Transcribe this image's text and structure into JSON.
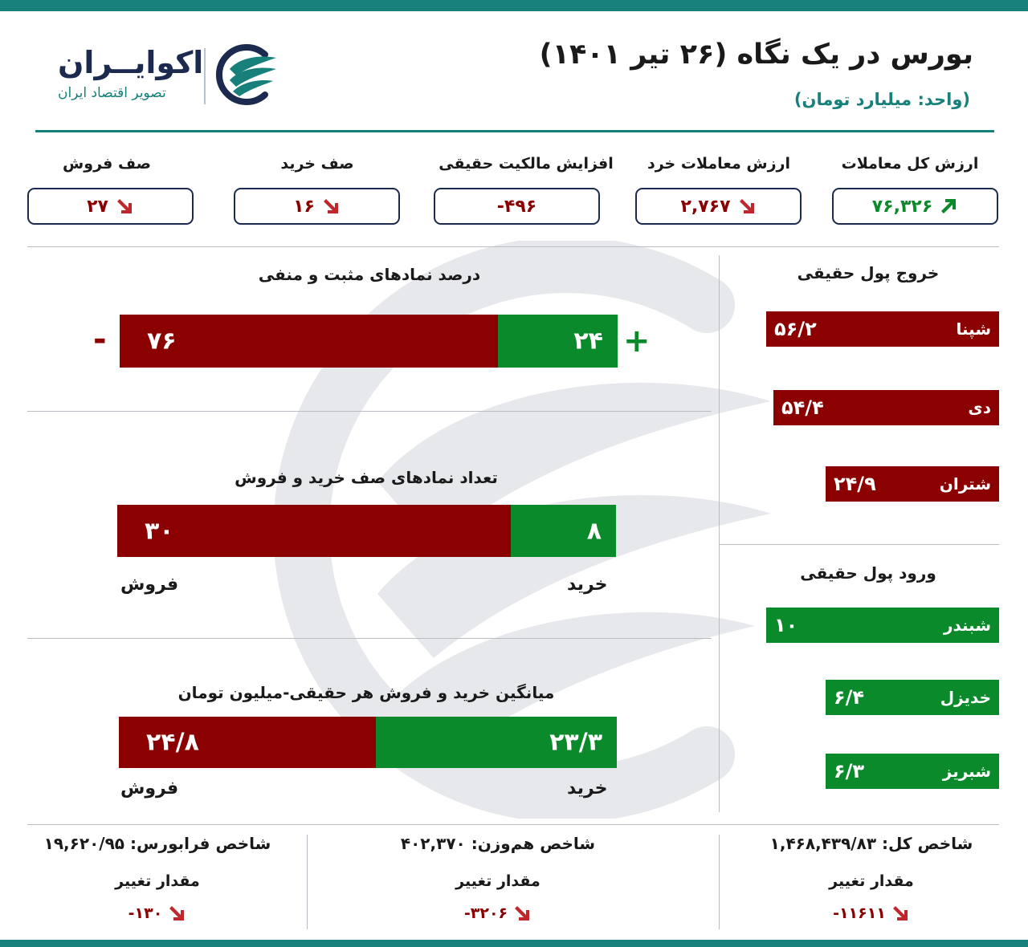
{
  "header": {
    "title": "بورس در یک نگاه (۲۶ تیر ۱۴۰۱)",
    "unit": "(واحد: میلیارد تومان)",
    "logo_name": "اکوایــران",
    "logo_tagline": "تصویر اقتصاد ایران"
  },
  "colors": {
    "brand": "#17807a",
    "navy": "#1b2a4e",
    "negative": "#8b0000",
    "positive": "#0a8a2a",
    "increase_arrow": "#0a8a2a",
    "decrease_arrow": "#c0272d"
  },
  "kpis": [
    {
      "label": "ارزش کل معاملات",
      "value": "۷۶,۳۲۶",
      "trend": "up"
    },
    {
      "label": "ارزش معاملات خرد",
      "value": "۲,۷۶۷",
      "trend": "down"
    },
    {
      "label": "افزایش مالکیت حقیقی",
      "value": "-۴۹۶",
      "trend": "none"
    },
    {
      "label": "صف خرید",
      "value": "۱۶",
      "trend": "down"
    },
    {
      "label": "صف فروش",
      "value": "۲۷",
      "trend": "down"
    }
  ],
  "chart_data": [
    {
      "type": "bar",
      "stacked": true,
      "orientation": "horizontal",
      "title": "درصد نمادهای مثبت و منفی",
      "series": [
        {
          "name": "+",
          "values": [
            24
          ],
          "label": "۲۴",
          "color": "#0a8a2a"
        },
        {
          "name": "-",
          "values": [
            76
          ],
          "label": "۷۶",
          "color": "#8b0000"
        }
      ]
    },
    {
      "type": "bar",
      "stacked": true,
      "orientation": "horizontal",
      "title": "تعداد نمادهای صف خرید و فروش",
      "series": [
        {
          "name": "خرید",
          "values": [
            8
          ],
          "label": "۸",
          "color": "#0a8a2a"
        },
        {
          "name": "فروش",
          "values": [
            30
          ],
          "label": "۳۰",
          "color": "#8b0000"
        }
      ]
    },
    {
      "type": "bar",
      "stacked": true,
      "orientation": "horizontal",
      "title": "میانگین خرید و فروش هر حقیقی-میلیون تومان",
      "series": [
        {
          "name": "خرید",
          "values": [
            23.3
          ],
          "label": "۲۳/۳",
          "color": "#0a8a2a"
        },
        {
          "name": "فروش",
          "values": [
            24.8
          ],
          "label": "۲۴/۸",
          "color": "#8b0000"
        }
      ]
    },
    {
      "type": "bar",
      "orientation": "horizontal",
      "title": "خروج پول حقیقی",
      "categories": [
        "شپنا",
        "دی",
        "شتران"
      ],
      "values": [
        56.2,
        54.4,
        24.9
      ],
      "labels": [
        "۵۶/۲",
        "۵۴/۴",
        "۲۴/۹"
      ],
      "color": "#8b0000"
    },
    {
      "type": "bar",
      "orientation": "horizontal",
      "title": "ورود پول حقیقی",
      "categories": [
        "شبندر",
        "خدیزل",
        "شبریز"
      ],
      "values": [
        10,
        6.4,
        6.3
      ],
      "labels": [
        "۱۰",
        "۶/۴",
        "۶/۳"
      ],
      "color": "#0a8a2a"
    }
  ],
  "stacked_captions": {
    "buy": "خرید",
    "sell": "فروش"
  },
  "indices": [
    {
      "title": "شاخص کل: ۱,۴۶۸,۴۳۹/۸۳",
      "change_label": "مقدار تغییر",
      "change": "-۱۱۶۱۱",
      "trend": "down"
    },
    {
      "title": "شاخص هم‌وزن: ۴۰۲,۳۷۰",
      "change_label": "مقدار تغییر",
      "change": "-۳۲۰۶",
      "trend": "down"
    },
    {
      "title": "شاخص فرابورس: ۱۹,۶۲۰/۹۵",
      "change_label": "مقدار تغییر",
      "change": "-۱۳۰",
      "trend": "down"
    }
  ]
}
